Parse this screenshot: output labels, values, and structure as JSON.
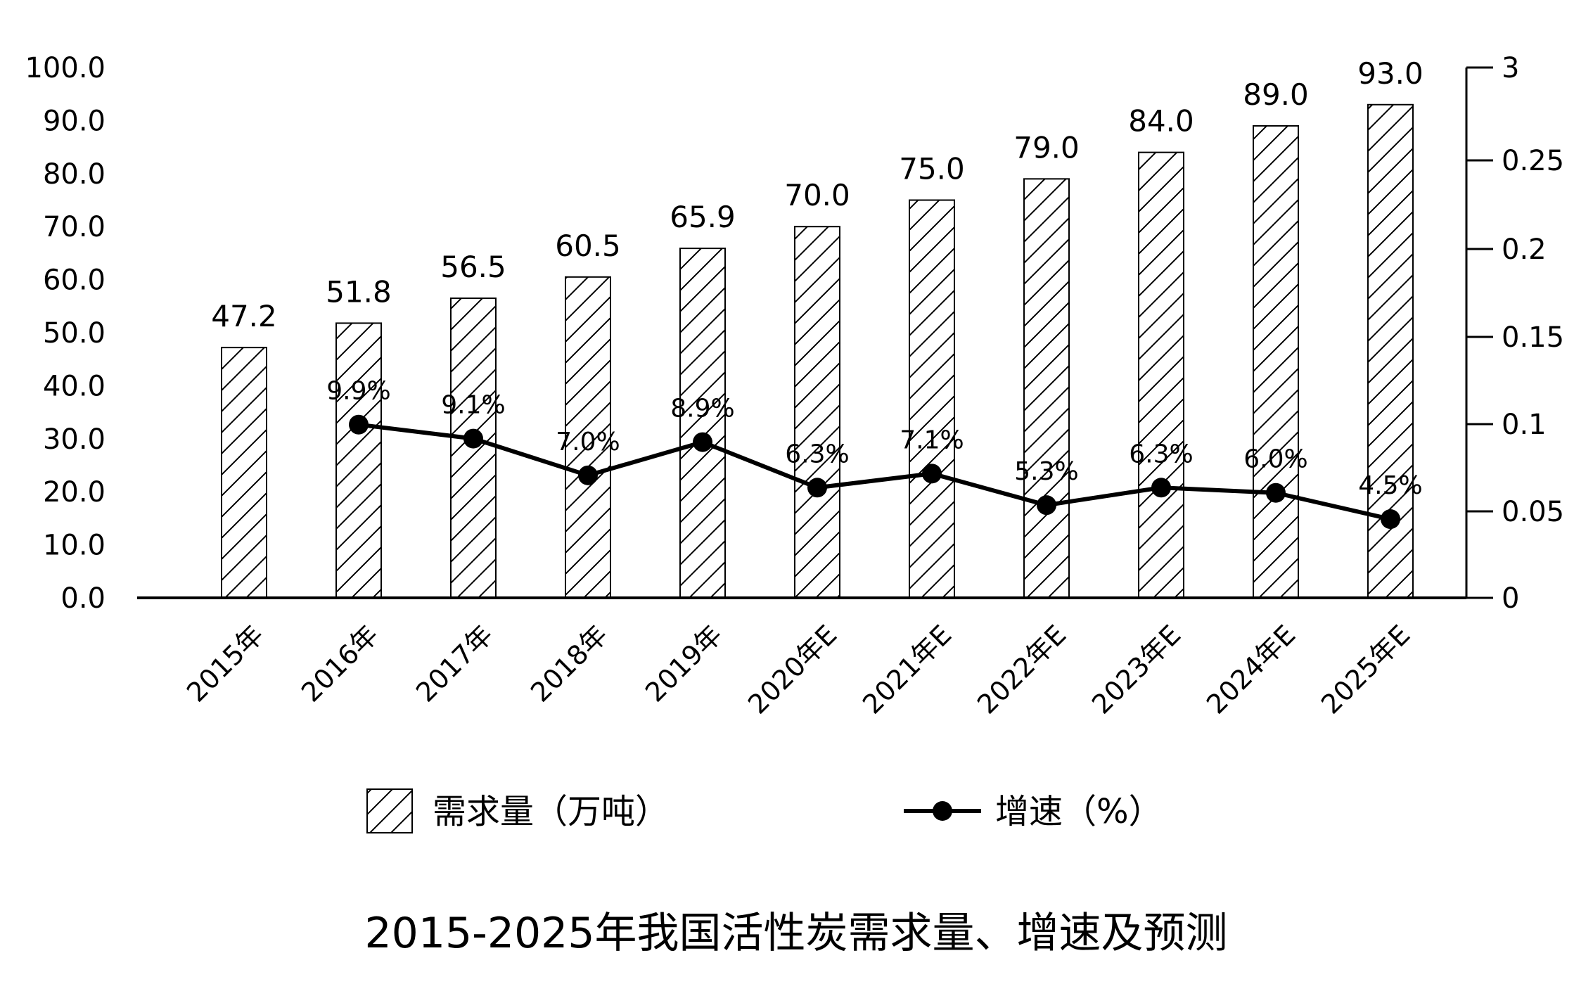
{
  "chart_data": {
    "type": "bar",
    "title": "2015-2025年我国活性炭需求量、增速及预测",
    "categories": [
      "2015年",
      "2016年",
      "2017年",
      "2018年",
      "2019年",
      "2020年E",
      "2021年E",
      "2022年E",
      "2023年E",
      "2024年E",
      "2025年E"
    ],
    "series": [
      {
        "name": "需求量（万吨）",
        "type": "bar",
        "axis": "left",
        "values": [
          47.2,
          51.8,
          56.5,
          60.5,
          65.9,
          70.0,
          75.0,
          79.0,
          84.0,
          89.0,
          93.0
        ],
        "labels": [
          "47.2",
          "51.8",
          "56.5",
          "60.5",
          "65.9",
          "70.0",
          "75.0",
          "79.0",
          "84.0",
          "89.0",
          "93.0"
        ]
      },
      {
        "name": "增速（%）",
        "type": "line",
        "axis": "right",
        "values": [
          null,
          0.099,
          0.091,
          0.07,
          0.089,
          0.063,
          0.071,
          0.053,
          0.063,
          0.06,
          0.045
        ],
        "labels": [
          "",
          "9.9%",
          "9.1%",
          "7.0%",
          "8.9%",
          "6.3%",
          "7.1%",
          "5.3%",
          "6.3%",
          "6.0%",
          "4.5%"
        ]
      }
    ],
    "left_axis": {
      "ylim": [
        0,
        100
      ],
      "ticks": [
        0,
        10,
        20,
        30,
        40,
        50,
        60,
        70,
        80,
        90,
        100
      ],
      "tick_labels": [
        "0.0",
        "10.0",
        "20.0",
        "30.0",
        "40.0",
        "50.0",
        "60.0",
        "70.0",
        "80.0",
        "90.0",
        "100.0"
      ]
    },
    "right_axis": {
      "ticks": [
        0,
        0.05,
        0.1,
        0.15,
        0.2,
        0.25,
        3
      ],
      "tick_labels": [
        "0",
        "0.05",
        "0.1",
        "0.15",
        "0.2",
        "0.25",
        "3"
      ]
    },
    "grid": false,
    "legend_position": "bottom",
    "colors": {
      "bar_fill": "#ffffff",
      "bar_hatch": "#000000",
      "line": "#000000"
    }
  }
}
